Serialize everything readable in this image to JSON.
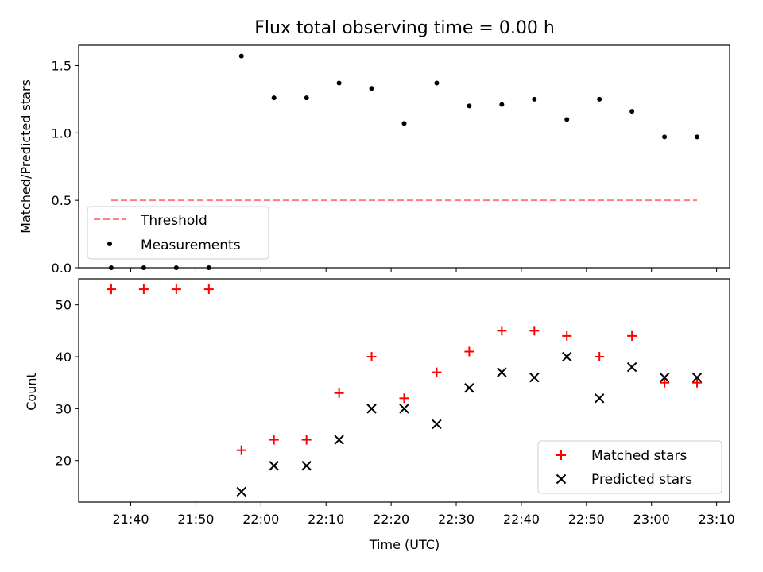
{
  "chart_data": [
    {
      "type": "scatter",
      "title": "Flux total observing time = 0.00 h",
      "ylabel": "Matched/Predicted stars",
      "ylim": [
        0,
        1.65
      ],
      "yticks": [
        "0.0",
        "0.5",
        "1.0",
        "1.5"
      ],
      "threshold": {
        "name": "Threshold",
        "value": 0.5,
        "x_start": "21:37",
        "x_end": "23:07",
        "color": "#ff7f7f"
      },
      "series": [
        {
          "name": "Measurements",
          "color": "#000000",
          "points": [
            [
              "21:37",
              0.0
            ],
            [
              "21:42",
              0.0
            ],
            [
              "21:47",
              0.0
            ],
            [
              "21:52",
              0.0
            ],
            [
              "21:57",
              1.57
            ],
            [
              "22:02",
              1.26
            ],
            [
              "22:07",
              1.26
            ],
            [
              "22:12",
              1.37
            ],
            [
              "22:17",
              1.33
            ],
            [
              "22:22",
              1.07
            ],
            [
              "22:27",
              1.37
            ],
            [
              "22:32",
              1.2
            ],
            [
              "22:37",
              1.21
            ],
            [
              "22:42",
              1.25
            ],
            [
              "22:47",
              1.1
            ],
            [
              "22:52",
              1.25
            ],
            [
              "22:57",
              1.16
            ],
            [
              "23:02",
              0.97
            ],
            [
              "23:07",
              0.97
            ]
          ]
        }
      ],
      "legend_position": "lower-left"
    },
    {
      "type": "scatter",
      "xlabel": "Time (UTC)",
      "ylabel": "Count",
      "xlim": [
        "21:32",
        "23:12"
      ],
      "xticks": [
        "21:40",
        "21:50",
        "22:00",
        "22:10",
        "22:20",
        "22:30",
        "22:40",
        "22:50",
        "23:00",
        "23:10"
      ],
      "ylim": [
        12,
        55
      ],
      "yticks": [
        "20",
        "30",
        "40",
        "50"
      ],
      "series": [
        {
          "name": "Matched stars",
          "marker": "plus",
          "color": "#ff0000",
          "points": [
            [
              "21:37",
              53
            ],
            [
              "21:42",
              53
            ],
            [
              "21:47",
              53
            ],
            [
              "21:52",
              53
            ],
            [
              "21:57",
              22
            ],
            [
              "22:02",
              24
            ],
            [
              "22:07",
              24
            ],
            [
              "22:12",
              33
            ],
            [
              "22:17",
              40
            ],
            [
              "22:22",
              32
            ],
            [
              "22:27",
              37
            ],
            [
              "22:32",
              41
            ],
            [
              "22:37",
              45
            ],
            [
              "22:42",
              45
            ],
            [
              "22:47",
              44
            ],
            [
              "22:52",
              40
            ],
            [
              "22:57",
              44
            ],
            [
              "23:02",
              35
            ],
            [
              "23:07",
              35
            ]
          ]
        },
        {
          "name": "Predicted stars",
          "marker": "x",
          "color": "#000000",
          "points": [
            [
              "21:57",
              14
            ],
            [
              "22:02",
              19
            ],
            [
              "22:07",
              19
            ],
            [
              "22:12",
              24
            ],
            [
              "22:17",
              30
            ],
            [
              "22:22",
              30
            ],
            [
              "22:27",
              27
            ],
            [
              "22:32",
              34
            ],
            [
              "22:37",
              37
            ],
            [
              "22:42",
              36
            ],
            [
              "22:47",
              40
            ],
            [
              "22:52",
              32
            ],
            [
              "22:57",
              38
            ],
            [
              "23:02",
              36
            ],
            [
              "23:07",
              36
            ]
          ]
        }
      ],
      "legend_position": "lower-right"
    }
  ]
}
